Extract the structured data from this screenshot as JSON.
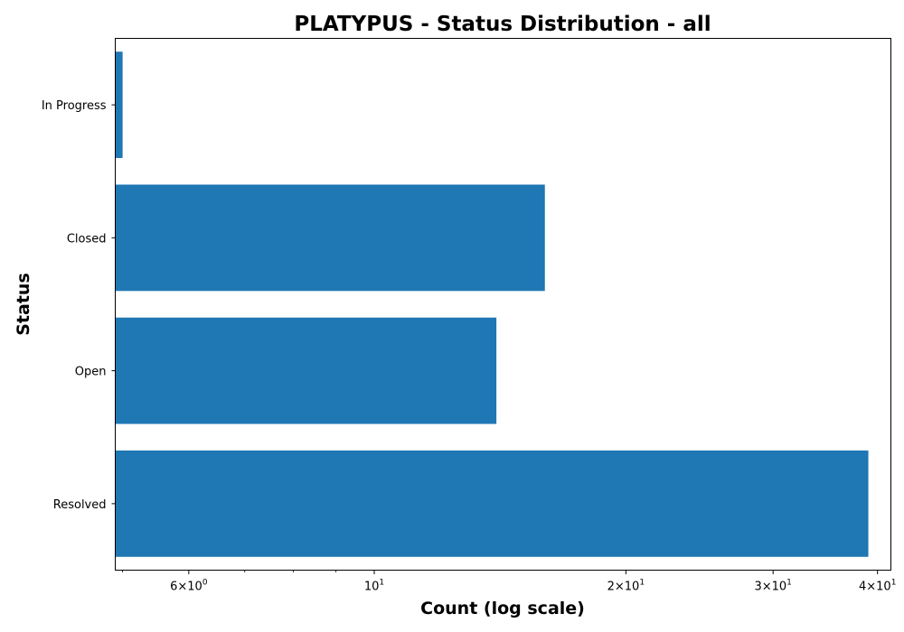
{
  "chart_data": {
    "type": "bar",
    "orientation": "horizontal",
    "title": "PLATYPUS - Status Distribution - all",
    "xlabel": "Count (log scale)",
    "ylabel": "Status",
    "x_scale": "log",
    "xlim": [
      4.9,
      41.5
    ],
    "categories": [
      "In Progress",
      "Closed",
      "Open",
      "Resolved"
    ],
    "values": [
      5,
      16,
      14,
      39
    ],
    "major_ticks": [
      {
        "value": 6,
        "mantissa": "6",
        "base": "10",
        "exponent": "0"
      },
      {
        "value": 10,
        "mantissa": "",
        "base": "10",
        "exponent": "1"
      },
      {
        "value": 20,
        "mantissa": "2",
        "base": "10",
        "exponent": "1"
      },
      {
        "value": 30,
        "mantissa": "3",
        "base": "10",
        "exponent": "1"
      },
      {
        "value": 40,
        "mantissa": "4",
        "base": "10",
        "exponent": "1"
      }
    ],
    "minor_ticks": [
      5,
      7,
      8,
      9
    ],
    "bar_color": "#1f77b4",
    "grid": false,
    "legend": "none"
  }
}
